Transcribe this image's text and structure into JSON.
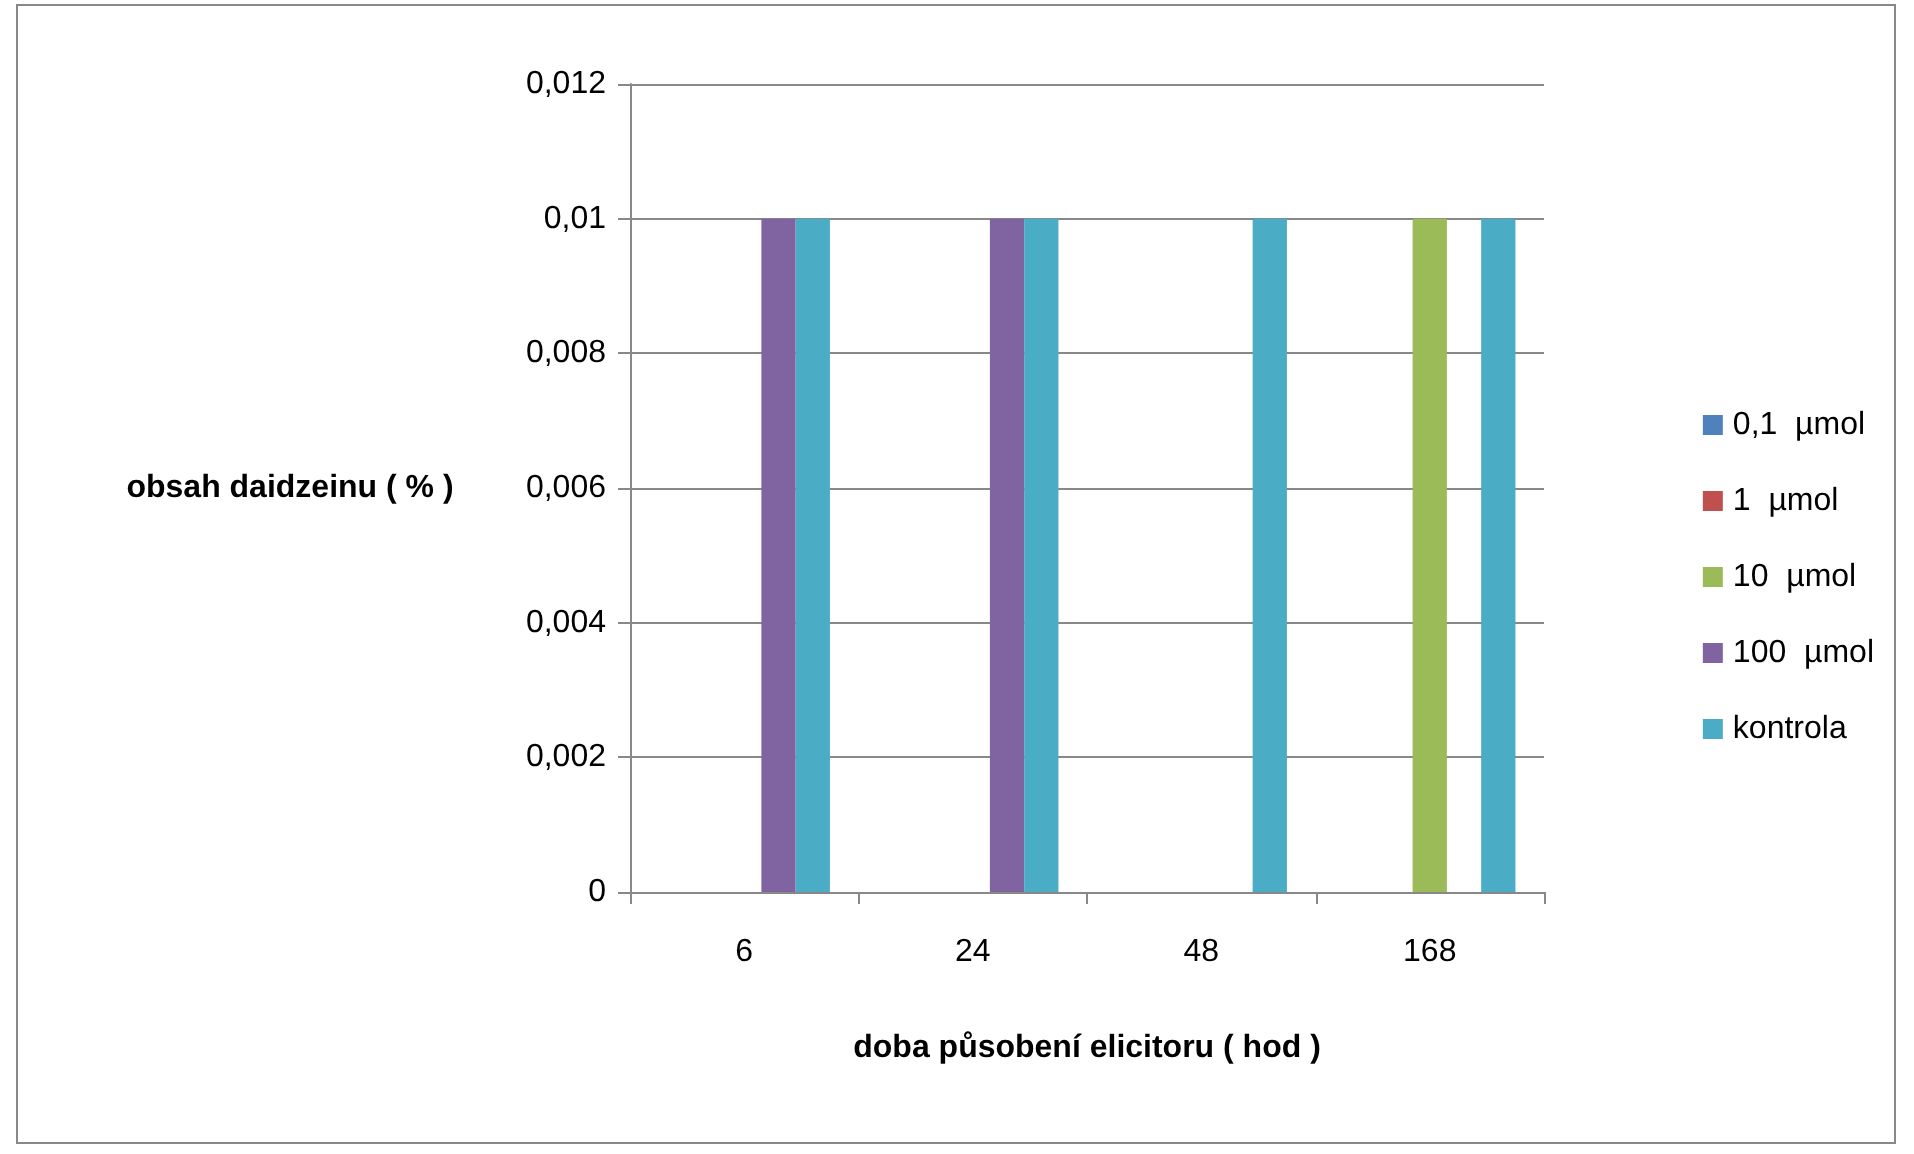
{
  "chart_data": {
    "type": "bar",
    "xlabel": "doba působení elicitoru ( hod )",
    "ylabel": "obsah daidzeinu ( % )",
    "categories": [
      "6",
      "24",
      "48",
      "168"
    ],
    "series": [
      {
        "name": "0,1  µmol",
        "color": "#4f81bd",
        "values": [
          0,
          0,
          0,
          0
        ]
      },
      {
        "name": "1  µmol",
        "color": "#c0504d",
        "values": [
          0,
          0,
          0,
          0
        ]
      },
      {
        "name": "10  µmol",
        "color": "#9bbb59",
        "values": [
          0,
          0,
          0,
          0.01
        ]
      },
      {
        "name": "100  µmol",
        "color": "#8064a2",
        "values": [
          0.01,
          0.01,
          0,
          0
        ]
      },
      {
        "name": "kontrola",
        "color": "#4bacc6",
        "values": [
          0.01,
          0.01,
          0.01,
          0.01
        ]
      }
    ],
    "ylim": [
      0,
      0.012
    ],
    "yticks": [
      {
        "value": 0,
        "label": "0"
      },
      {
        "value": 0.002,
        "label": "0,002"
      },
      {
        "value": 0.004,
        "label": "0,004"
      },
      {
        "value": 0.006,
        "label": "0,006"
      },
      {
        "value": 0.008,
        "label": "0,008"
      },
      {
        "value": 0.01,
        "label": "0,01"
      },
      {
        "value": 0.012,
        "label": "0,012"
      }
    ],
    "grid": "y",
    "legend": "right"
  }
}
